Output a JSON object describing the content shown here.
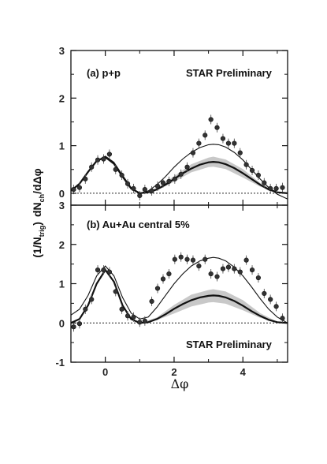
{
  "chart_data": [
    {
      "type": "scatter",
      "panel_label": "(a) p+p",
      "annotation": "STAR Preliminary",
      "xlim": [
        -1.0,
        5.3
      ],
      "ylim": [
        -0.25,
        3
      ],
      "yticks": [
        0,
        1,
        2,
        3
      ],
      "series": [
        {
          "kind": "points",
          "x": [
            -0.92,
            -0.75,
            -0.58,
            -0.4,
            -0.22,
            -0.05,
            0.12,
            0.3,
            0.48,
            0.65,
            0.82,
            1.0,
            1.15,
            1.35,
            1.52,
            1.68,
            1.85,
            2.02,
            2.2,
            2.38,
            2.55,
            2.72,
            2.9,
            3.07,
            3.25,
            3.42,
            3.58,
            3.75,
            3.92,
            4.1,
            4.27,
            4.45,
            4.62,
            4.8,
            4.97,
            5.15
          ],
          "y": [
            0.08,
            0.12,
            0.3,
            0.55,
            0.7,
            0.72,
            0.82,
            0.5,
            0.38,
            0.2,
            0.1,
            -0.05,
            0.08,
            0.05,
            0.15,
            0.22,
            0.25,
            0.3,
            0.4,
            0.55,
            0.85,
            1.05,
            1.22,
            1.55,
            1.38,
            1.15,
            1.05,
            1.05,
            0.85,
            0.6,
            0.48,
            0.38,
            0.22,
            0.1,
            0.1,
            0.12
          ]
        },
        {
          "kind": "thin-line",
          "x": [
            -1.0,
            -0.75,
            -0.5,
            -0.25,
            0.0,
            0.25,
            0.5,
            0.75,
            1.0,
            1.25,
            1.5,
            1.75,
            2.0,
            2.25,
            2.5,
            2.75,
            3.0,
            3.14,
            3.3,
            3.5,
            3.75,
            4.0,
            4.25,
            4.5,
            4.75,
            5.0,
            5.3
          ],
          "y": [
            0.05,
            0.2,
            0.45,
            0.68,
            0.78,
            0.65,
            0.38,
            0.12,
            0.0,
            0.05,
            0.18,
            0.35,
            0.55,
            0.72,
            0.86,
            0.96,
            1.02,
            1.03,
            1.02,
            0.97,
            0.86,
            0.7,
            0.5,
            0.3,
            0.12,
            -0.02,
            -0.12
          ]
        },
        {
          "kind": "thick-line",
          "x": [
            -1.0,
            -0.75,
            -0.5,
            -0.25,
            0.0,
            0.25,
            0.5,
            0.75,
            1.0,
            1.25,
            1.5,
            1.75,
            2.0,
            2.25,
            2.5,
            2.75,
            3.0,
            3.14,
            3.3,
            3.5,
            3.75,
            4.0,
            4.25,
            4.5,
            4.75,
            5.0,
            5.3
          ],
          "y": [
            0.05,
            0.2,
            0.45,
            0.68,
            0.76,
            0.62,
            0.35,
            0.1,
            0.0,
            0.02,
            0.08,
            0.18,
            0.3,
            0.42,
            0.52,
            0.6,
            0.65,
            0.66,
            0.65,
            0.61,
            0.53,
            0.42,
            0.3,
            0.18,
            0.08,
            0.02,
            0.0
          ]
        },
        {
          "kind": "band",
          "x": [
            1.0,
            1.5,
            2.0,
            2.5,
            3.0,
            3.14,
            3.5,
            4.0,
            4.5,
            5.0,
            5.3
          ],
          "y_low": [
            0.0,
            0.06,
            0.24,
            0.44,
            0.55,
            0.56,
            0.51,
            0.33,
            0.14,
            0.01,
            0.0
          ],
          "y_high": [
            0.0,
            0.11,
            0.36,
            0.61,
            0.75,
            0.77,
            0.71,
            0.51,
            0.22,
            0.03,
            0.0
          ]
        }
      ]
    },
    {
      "type": "scatter",
      "panel_label": "(b) Au+Au central 5%",
      "annotation": "STAR Preliminary",
      "xlabel": "Δφ",
      "xlim": [
        -1.0,
        5.3
      ],
      "xticks": [
        0,
        2,
        4
      ],
      "ylim": [
        -1,
        3
      ],
      "yticks": [
        -1,
        0,
        1,
        2,
        3
      ],
      "series": [
        {
          "kind": "points",
          "x": [
            -0.92,
            -0.75,
            -0.58,
            -0.4,
            -0.22,
            -0.05,
            0.12,
            0.3,
            0.48,
            0.65,
            0.82,
            1.0,
            1.15,
            1.35,
            1.52,
            1.68,
            1.85,
            2.02,
            2.2,
            2.38,
            2.55,
            2.72,
            2.9,
            3.07,
            3.25,
            3.42,
            3.58,
            3.75,
            3.92,
            4.1,
            4.27,
            4.45,
            4.62,
            4.8,
            4.97,
            5.15
          ],
          "y": [
            -0.1,
            -0.02,
            0.35,
            0.6,
            1.35,
            1.35,
            1.3,
            0.8,
            0.35,
            0.18,
            0.15,
            0.02,
            0.05,
            0.55,
            0.88,
            1.12,
            1.25,
            1.62,
            1.68,
            1.62,
            1.6,
            1.45,
            1.62,
            1.25,
            1.18,
            1.38,
            1.42,
            1.38,
            1.3,
            1.6,
            1.35,
            1.15,
            0.75,
            0.6,
            0.42,
            0.12
          ]
        },
        {
          "kind": "thin-line",
          "x": [
            -1.0,
            -0.75,
            -0.5,
            -0.25,
            0.0,
            0.25,
            0.5,
            0.75,
            1.0,
            1.25,
            1.5,
            1.75,
            2.0,
            2.25,
            2.5,
            2.75,
            3.0,
            3.14,
            3.3,
            3.5,
            3.75,
            4.0,
            4.25,
            4.5,
            4.75,
            5.0,
            5.3
          ],
          "y": [
            0.2,
            0.35,
            0.7,
            1.2,
            1.45,
            1.2,
            0.65,
            0.25,
            0.1,
            0.15,
            0.4,
            0.7,
            1.0,
            1.25,
            1.45,
            1.58,
            1.65,
            1.67,
            1.65,
            1.58,
            1.42,
            1.2,
            0.92,
            0.62,
            0.35,
            0.15,
            0.0
          ]
        },
        {
          "kind": "thick-line",
          "x": [
            -1.0,
            -0.75,
            -0.5,
            -0.25,
            0.0,
            0.25,
            0.5,
            0.75,
            1.0,
            1.25,
            1.5,
            1.75,
            2.0,
            2.25,
            2.5,
            2.75,
            3.0,
            3.14,
            3.3,
            3.5,
            3.75,
            4.0,
            4.25,
            4.5,
            4.75,
            5.0,
            5.3
          ],
          "y": [
            0.0,
            0.1,
            0.45,
            1.0,
            1.35,
            1.05,
            0.45,
            0.1,
            0.0,
            0.02,
            0.1,
            0.22,
            0.36,
            0.48,
            0.58,
            0.65,
            0.69,
            0.7,
            0.69,
            0.65,
            0.56,
            0.44,
            0.3,
            0.18,
            0.08,
            0.02,
            0.0
          ]
        },
        {
          "kind": "band",
          "x": [
            1.0,
            1.5,
            2.0,
            2.5,
            3.0,
            3.14,
            3.5,
            4.0,
            4.5,
            5.0,
            5.3
          ],
          "y_low": [
            0.0,
            0.07,
            0.24,
            0.42,
            0.52,
            0.53,
            0.49,
            0.32,
            0.13,
            0.01,
            0.0
          ],
          "y_high": [
            0.0,
            0.14,
            0.46,
            0.72,
            0.84,
            0.86,
            0.8,
            0.58,
            0.25,
            0.03,
            0.0
          ]
        }
      ]
    }
  ],
  "shared": {
    "ylabel_main": "(1/N",
    "ylabel_sub": "trig",
    "ylabel_close": ")",
    "ylabel_dn": "dN",
    "ylabel_dn_sub": "ch",
    "ylabel_rest": "/dΔφ",
    "colors": {
      "points": "#333333",
      "line": "#111111",
      "band": "#c8c8c8",
      "frame": "#111111"
    }
  }
}
